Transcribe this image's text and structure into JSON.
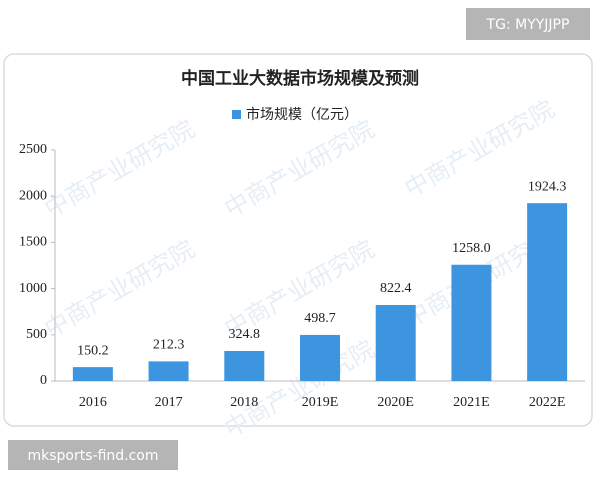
{
  "chart_data": {
    "type": "bar",
    "title": "中国工业大数据市场规模及预测",
    "categories": [
      "2016",
      "2017",
      "2018",
      "2019E",
      "2020E",
      "2021E",
      "2022E"
    ],
    "series": [
      {
        "name": "市场规模（亿元）",
        "color": "#3d95e0",
        "values": [
          150.2,
          212.3,
          324.8,
          498.7,
          822.4,
          1258.0,
          1924.3
        ],
        "value_labels": [
          "150.2",
          "212.3",
          "324.8",
          "498.7",
          "822.4",
          "1258.0",
          "1924.3"
        ]
      }
    ],
    "ylim": [
      0,
      2500
    ],
    "yticks": [
      0,
      500,
      1000,
      1500,
      2000,
      2500
    ],
    "grid": false
  },
  "overlays": {
    "top_tag": "TG: MYYJJPP",
    "bottom_tag": "mksports-find.com",
    "watermark": "中商产业研究院"
  }
}
